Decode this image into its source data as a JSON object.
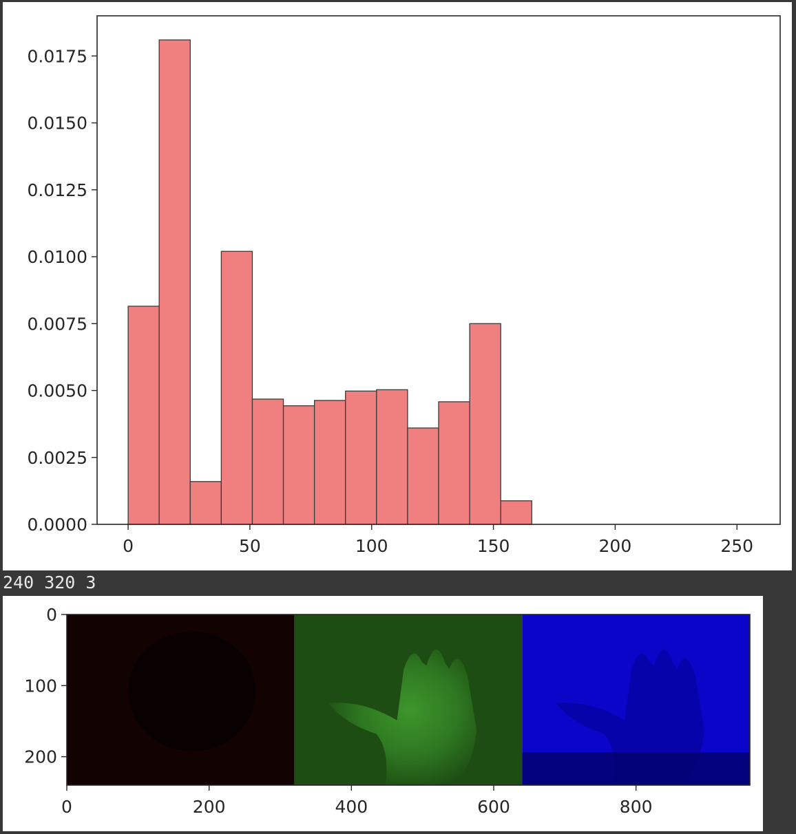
{
  "output_text": "240 320 3",
  "colors": {
    "bar_fill": "#f08080",
    "bar_edge": "#3a3a3a",
    "axis": "#262626",
    "page_background": "#383838",
    "channel_red": "#120202",
    "channel_green": "#1d4d12",
    "channel_blue": "#0a05c8"
  },
  "chart_data": [
    {
      "type": "bar",
      "subtype": "histogram",
      "bin_edges": [
        0,
        12.75,
        25.5,
        38.25,
        51,
        63.75,
        76.5,
        89.25,
        102,
        114.75,
        127.5,
        140.25,
        153,
        165.75
      ],
      "values": [
        0.00815,
        0.0181,
        0.0016,
        0.0102,
        0.00468,
        0.00443,
        0.00463,
        0.00498,
        0.00503,
        0.0036,
        0.00458,
        0.0075,
        0.00088
      ],
      "xlim": [
        -12.75,
        267.75
      ],
      "ylim": [
        0,
        0.0181
      ],
      "xticks": [
        0,
        50,
        100,
        150,
        200,
        250
      ],
      "xtick_labels": [
        "0",
        "50",
        "100",
        "150",
        "200",
        "250"
      ],
      "yticks": [
        0,
        0.0025,
        0.005,
        0.0075,
        0.01,
        0.0125,
        0.015,
        0.0175
      ],
      "ytick_labels": [
        "0.0000",
        "0.0025",
        "0.0050",
        "0.0075",
        "0.0100",
        "0.0125",
        "0.0150",
        "0.0175"
      ],
      "title": "",
      "xlabel": "",
      "ylabel": "",
      "grid": false
    },
    {
      "type": "heatmap",
      "subtype": "image",
      "image_shape": [
        240,
        960
      ],
      "panels": [
        "red",
        "green",
        "blue"
      ],
      "xlim": [
        0,
        960
      ],
      "ylim": [
        240,
        0
      ],
      "xticks": [
        0,
        200,
        400,
        600,
        800
      ],
      "xtick_labels": [
        "0",
        "200",
        "400",
        "600",
        "800"
      ],
      "yticks": [
        0,
        100,
        200
      ],
      "ytick_labels": [
        "0",
        "100",
        "200"
      ],
      "title": "",
      "xlabel": "",
      "ylabel": "",
      "grid": false
    }
  ]
}
